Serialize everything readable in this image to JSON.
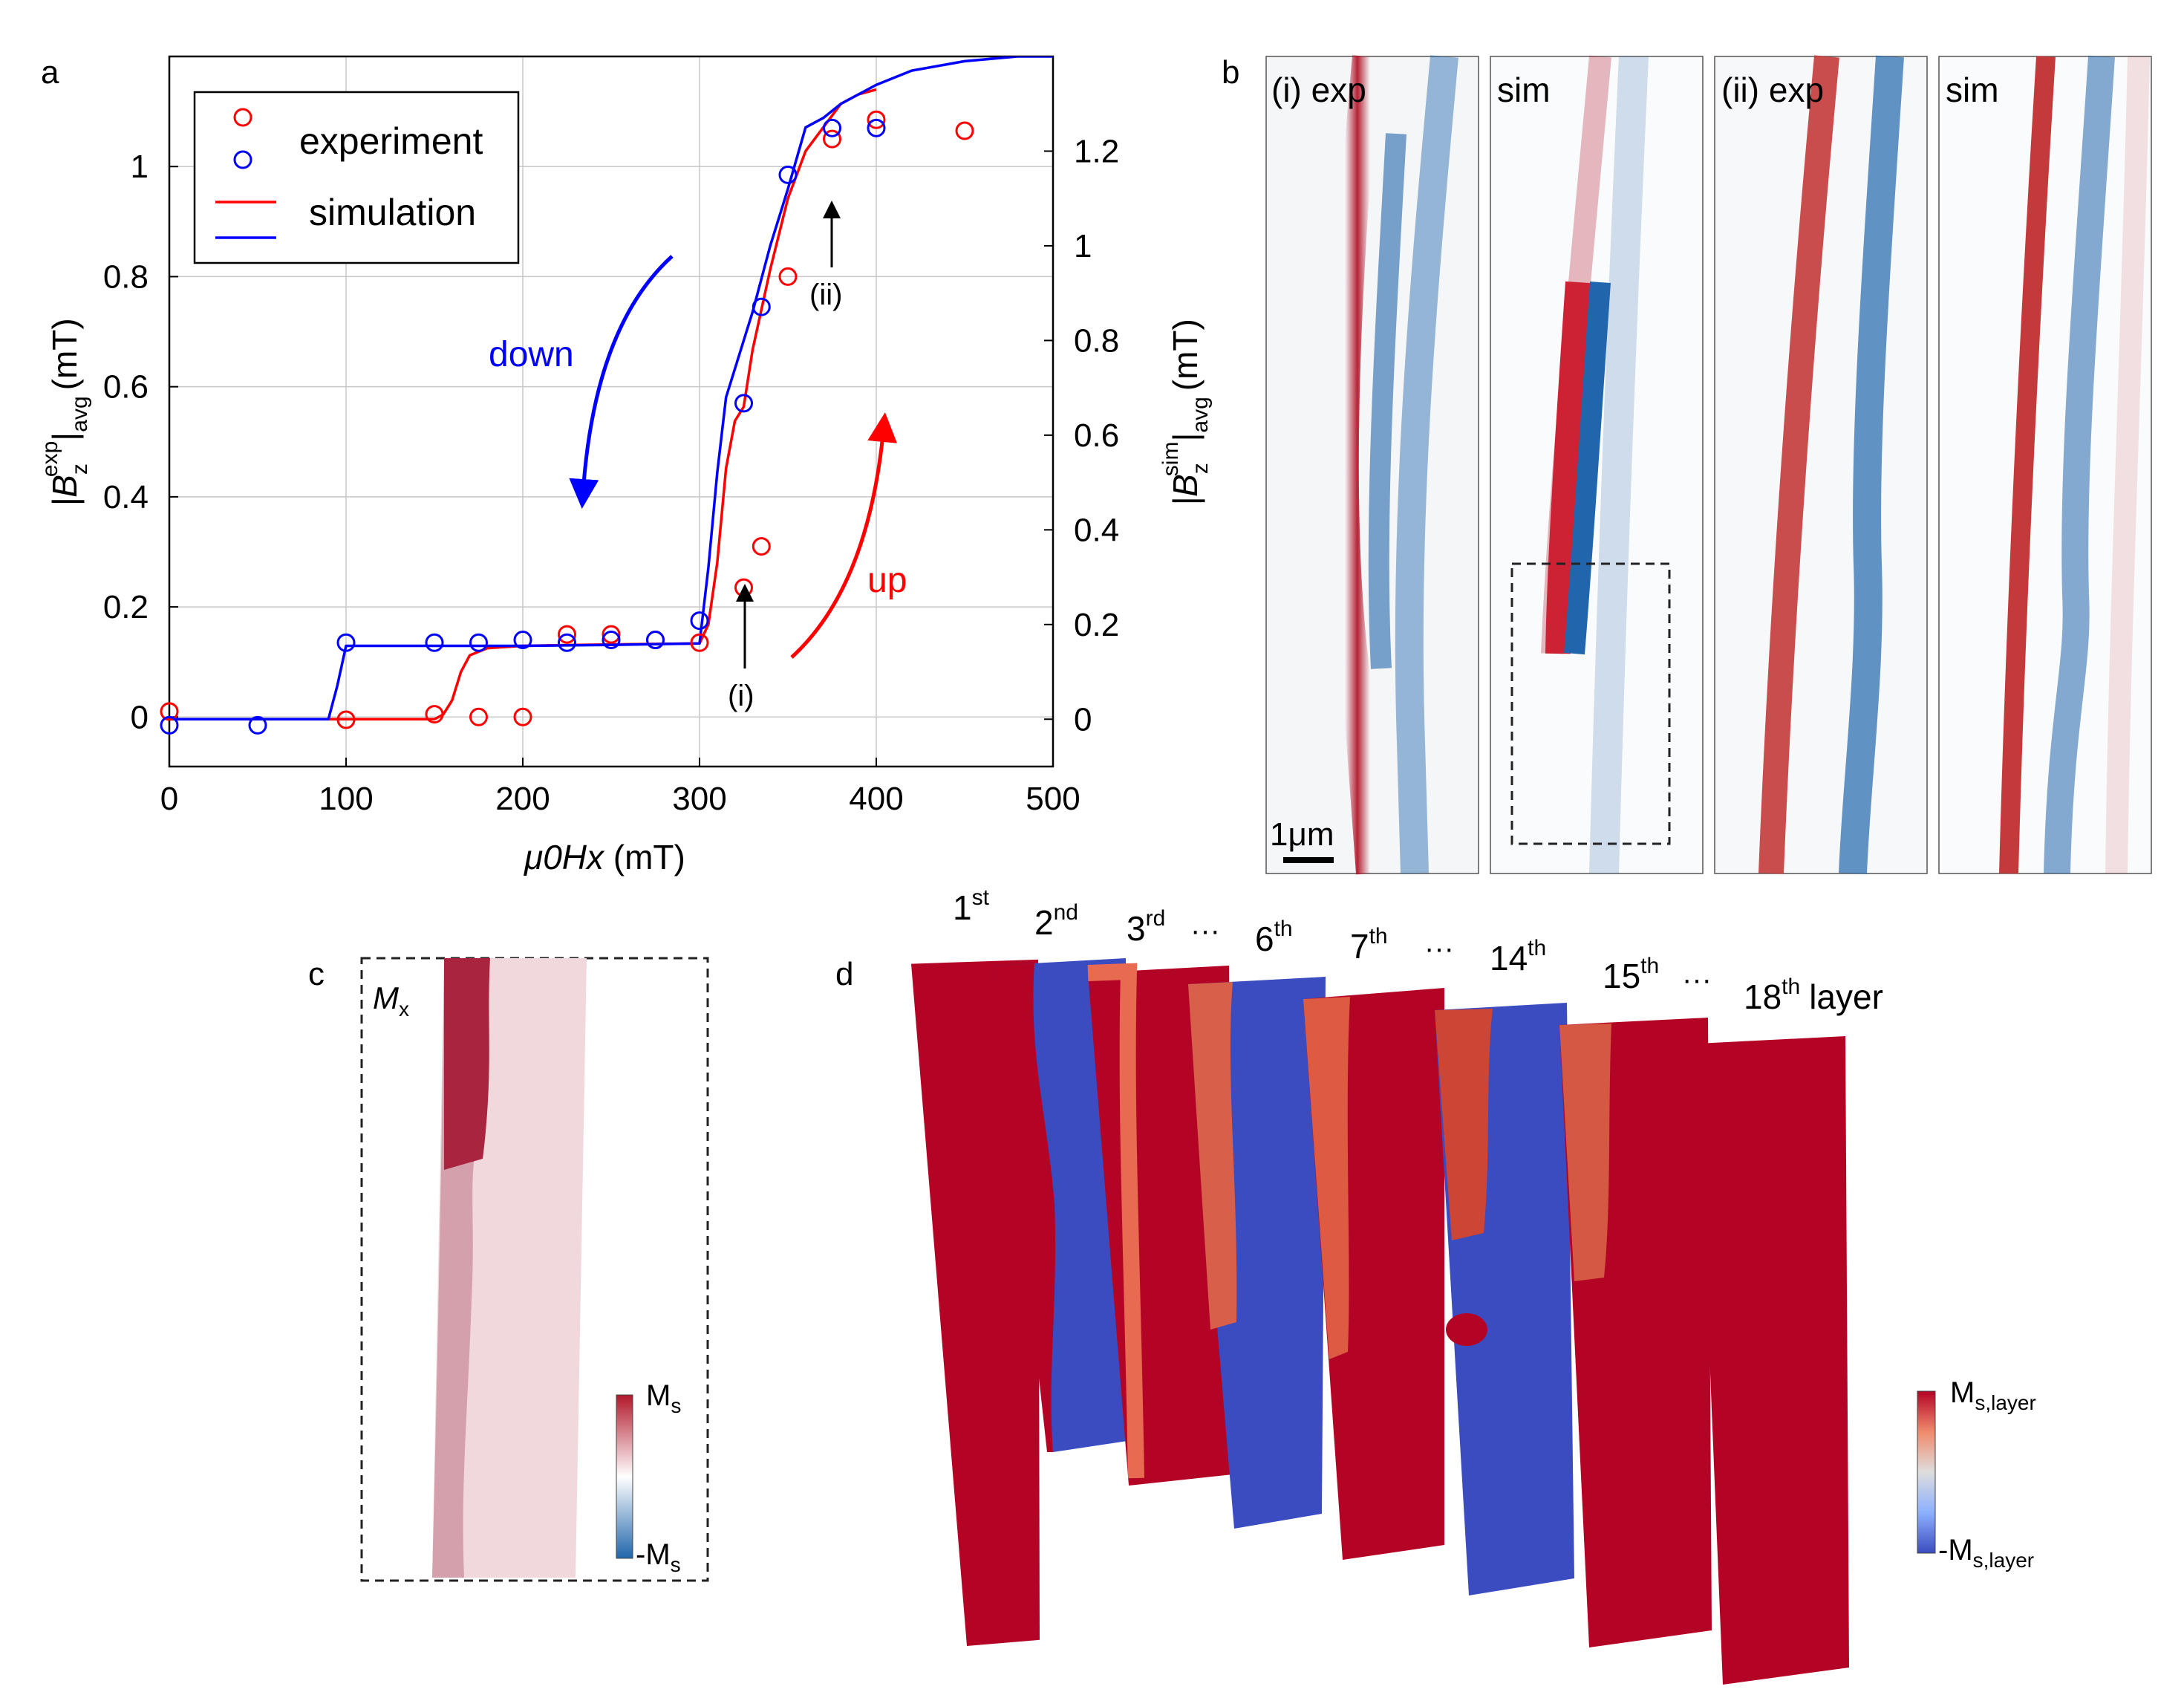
{
  "panels": {
    "a": "a",
    "b": "b",
    "c": "c",
    "d": "d"
  },
  "colors": {
    "red": "#ff0000",
    "blue": "#0000ff",
    "map_red": "#b2182b",
    "map_blue": "#2166ac",
    "layer_red": "#b40426",
    "layer_blue": "#3b4cc0"
  },
  "chart_data": {
    "type": "scatter",
    "title": "",
    "xlabel_main": "μ0Hx",
    "xlabel_unit": "(mT)",
    "ylabel_left": {
      "base": "|B",
      "sub": "z",
      "sup": "exp",
      "tail": "|",
      "avg": "avg",
      "unit": "(mT)"
    },
    "ylabel_right": {
      "base": "|B",
      "sub": "z",
      "sup": "sim",
      "tail": "|",
      "avg": "avg",
      "unit": "(mT)"
    },
    "xlim": [
      0,
      500
    ],
    "ylim_left": [
      -0.09,
      1.2
    ],
    "ylim_right": [
      -0.1,
      1.4
    ],
    "x_ticks": [
      "0",
      "100",
      "200",
      "300",
      "400",
      "500"
    ],
    "y_ticks_left": [
      "0",
      "0.2",
      "0.4",
      "0.6",
      "0.8",
      "1"
    ],
    "y_ticks_right": [
      "0",
      "0.2",
      "0.4",
      "0.6",
      "0.8",
      "1",
      "1.2"
    ],
    "grid": true,
    "legend": {
      "position": "top-left",
      "experiment": "experiment",
      "simulation": "simulation"
    },
    "series": [
      {
        "name": "experiment up",
        "color": "red",
        "kind": "points",
        "axis": "left",
        "x": [
          0,
          100,
          150,
          175,
          200,
          225,
          250,
          275,
          300,
          325,
          335,
          350,
          375,
          400,
          450
        ],
        "y": [
          0.01,
          -0.005,
          0.005,
          0,
          0,
          0.15,
          0.15,
          0.14,
          0.135,
          0.235,
          0.31,
          0.8,
          1.05,
          1.085,
          1.065
        ]
      },
      {
        "name": "experiment down",
        "color": "blue",
        "kind": "points",
        "axis": "left",
        "x": [
          0,
          50,
          100,
          150,
          175,
          200,
          225,
          250,
          275,
          300,
          325,
          335,
          350,
          375,
          400
        ],
        "y": [
          -0.015,
          -0.015,
          0.135,
          0.135,
          0.135,
          0.14,
          0.135,
          0.14,
          0.14,
          0.175,
          0.57,
          0.745,
          0.985,
          1.07,
          1.07
        ]
      },
      {
        "name": "simulation up",
        "color": "red",
        "kind": "line",
        "axis": "right",
        "x": [
          0,
          150,
          155,
          160,
          165,
          170,
          180,
          200,
          250,
          300,
          305,
          310,
          315,
          320,
          325,
          330,
          340,
          350,
          360,
          370,
          380,
          390,
          400
        ],
        "y": [
          0,
          0,
          0.01,
          0.04,
          0.1,
          0.135,
          0.15,
          0.155,
          0.158,
          0.16,
          0.2,
          0.33,
          0.53,
          0.63,
          0.66,
          0.78,
          0.95,
          1.1,
          1.2,
          1.25,
          1.3,
          1.32,
          1.33
        ]
      },
      {
        "name": "simulation down",
        "color": "blue",
        "kind": "line",
        "axis": "right",
        "x": [
          0,
          90,
          95,
          100,
          150,
          200,
          250,
          300,
          305,
          310,
          315,
          320,
          330,
          340,
          350,
          360,
          370,
          380,
          400,
          420,
          450,
          480,
          500
        ],
        "y": [
          0,
          0,
          0.07,
          0.155,
          0.155,
          0.155,
          0.157,
          0.16,
          0.32,
          0.52,
          0.68,
          0.74,
          0.86,
          1.0,
          1.12,
          1.25,
          1.27,
          1.3,
          1.34,
          1.37,
          1.39,
          1.4,
          1.4
        ]
      }
    ],
    "annotations": {
      "down": "down",
      "up": "up",
      "i": {
        "label": "(i)",
        "x": 325,
        "y": 0.24
      },
      "ii": {
        "label": "(ii)",
        "x": 375,
        "y": 1.05
      }
    }
  },
  "panel_b": {
    "labels": [
      "(i) exp",
      "sim",
      "(ii) exp",
      "sim"
    ],
    "scale_bar": "1μm"
  },
  "panel_c": {
    "label": "M",
    "label_sub": "x",
    "cb_top": "M",
    "cb_top_sub": "s",
    "cb_bottom": "-M",
    "cb_bottom_sub": "s"
  },
  "panel_d": {
    "layers": [
      {
        "num": "1",
        "sup": "st"
      },
      {
        "num": "2",
        "sup": "nd"
      },
      {
        "num": "3",
        "sup": "rd"
      },
      {
        "num": "6",
        "sup": "th"
      },
      {
        "num": "7",
        "sup": "th"
      },
      {
        "num": "14",
        "sup": "th"
      },
      {
        "num": "15",
        "sup": "th"
      },
      {
        "num": "18",
        "sup": "th"
      }
    ],
    "layer_word": "layer",
    "ellipsis": "···",
    "cb_top": "M",
    "cb_top_sub": "s,layer",
    "cb_bottom": "-M",
    "cb_bottom_sub": "s,layer"
  }
}
